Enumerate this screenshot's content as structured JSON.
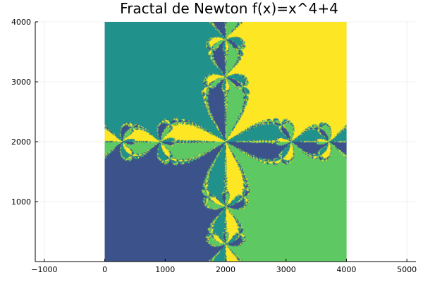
{
  "chart_data": {
    "type": "heatmap",
    "title": "Fractal de Newton f(x)=x^4+4",
    "xlabel": "",
    "ylabel": "",
    "xlim": [
      -1150,
      5150
    ],
    "ylim": [
      1,
      4000
    ],
    "x_ticks": [
      -1000,
      0,
      1000,
      2000,
      3000,
      4000,
      5000
    ],
    "y_ticks": [
      1000,
      2000,
      3000,
      4000
    ],
    "x_tick_labels": [
      "−1000",
      "0",
      "1000",
      "2000",
      "3000",
      "4000",
      "5000"
    ],
    "y_tick_labels": [
      "1000",
      "2000",
      "3000",
      "4000"
    ],
    "grid": true,
    "legend": "none",
    "image_extent": {
      "x": [
        0,
        4000
      ],
      "y": [
        1,
        4000
      ]
    },
    "function": "x^4+4",
    "root_colors": {
      "root_top_right": "#fde725",
      "root_top_left": "#21918c",
      "root_bottom_left": "#3b528b",
      "root_bottom_right": "#5ec962"
    }
  }
}
